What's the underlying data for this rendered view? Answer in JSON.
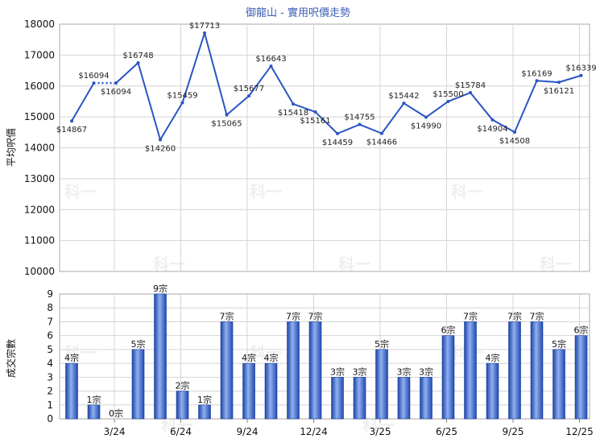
{
  "chart_data": [
    {
      "type": "line",
      "title": "御龍山 - 實用呎價走勢",
      "ylabel": "平均呎價",
      "ylim": [
        10000,
        18000
      ],
      "yticks": [
        "10000",
        "11000",
        "12000",
        "13000",
        "14000",
        "15000",
        "16000",
        "17000",
        "18000"
      ],
      "series": [
        {
          "values": [
            14867,
            16094,
            16094,
            16748,
            14260,
            15459,
            17713,
            15065,
            15677,
            16643,
            15418,
            15161,
            14459,
            14755,
            14466,
            15442,
            14990,
            15500,
            15784,
            14904,
            14508,
            16169,
            16121,
            16339
          ],
          "labels": [
            "$14867",
            "$16094",
            "$16094",
            "$16748",
            "$14260",
            "$15459",
            "$17713",
            "$15065",
            "$15677",
            "$16643",
            "$15418",
            "$15161",
            "$14459",
            "$14755",
            "$14466",
            "$15442",
            "$14990",
            "$15500",
            "$15784",
            "$14904",
            "$14508",
            "$16169",
            "$16121",
            "$16339"
          ],
          "dotted_segments": [
            [
              1,
              2
            ]
          ],
          "color": "#2a55c2"
        }
      ]
    },
    {
      "type": "bar",
      "ylabel": "成交宗數",
      "ylim": [
        0,
        9
      ],
      "yticks": [
        "0",
        "1",
        "2",
        "3",
        "4",
        "5",
        "6",
        "7",
        "8",
        "9"
      ],
      "x_ticks": [
        "3/24",
        "6/24",
        "9/24",
        "12/24",
        "3/25",
        "6/25",
        "9/25",
        "12/25"
      ],
      "values": [
        4,
        1,
        0,
        5,
        9,
        2,
        1,
        7,
        4,
        4,
        7,
        7,
        3,
        3,
        5,
        3,
        3,
        6,
        7,
        4,
        7,
        7,
        5,
        6
      ],
      "labels": [
        "4宗",
        "1宗",
        "0宗",
        "5宗",
        "9宗",
        "2宗",
        "1宗",
        "7宗",
        "4宗",
        "4宗",
        "7宗",
        "7宗",
        "3宗",
        "3宗",
        "5宗",
        "3宗",
        "3宗",
        "6宗",
        "7宗",
        "4宗",
        "7宗",
        "7宗",
        "5宗",
        "6宗"
      ],
      "color": "#3f6fd6"
    }
  ],
  "watermark": "科一"
}
